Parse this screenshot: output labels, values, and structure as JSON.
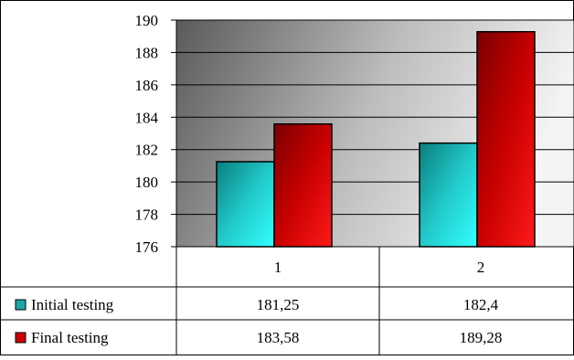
{
  "chart_data": {
    "type": "bar",
    "categories": [
      "1",
      "2"
    ],
    "series": [
      {
        "name": "Initial testing",
        "values": [
          181.25,
          182.4
        ],
        "labels": [
          "181,25",
          "182,4"
        ],
        "color": "#1aa6a6"
      },
      {
        "name": "Final testing",
        "values": [
          183.58,
          189.28
        ],
        "labels": [
          "183,58",
          "189,28"
        ],
        "color": "#cc0000"
      }
    ],
    "yticks": [
      "176",
      "178",
      "180",
      "182",
      "184",
      "186",
      "188",
      "190"
    ],
    "ylim": [
      176,
      190
    ],
    "grid": true,
    "legend": "data-table-left"
  }
}
